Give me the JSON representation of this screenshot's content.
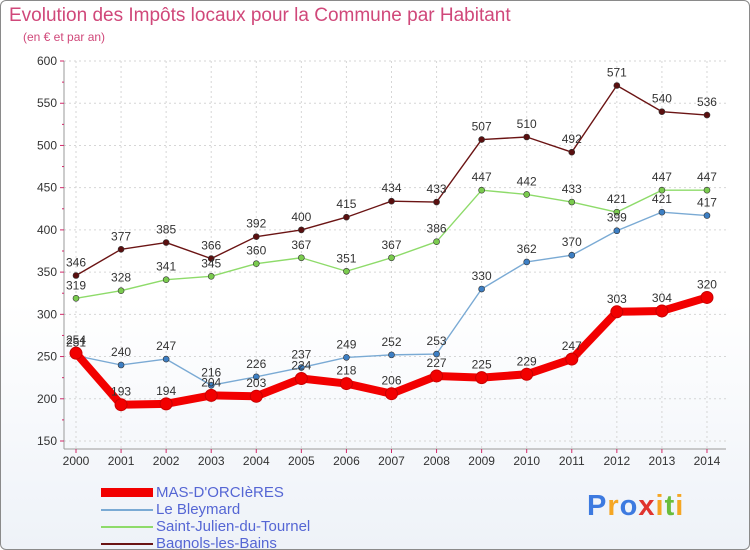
{
  "chart_data": {
    "type": "line",
    "title": "Evolution des Impôts locaux pour la Commune par Habitant",
    "subtitle": "(en € et par an)",
    "x": [
      "2000",
      "2001",
      "2002",
      "2003",
      "2004",
      "2005",
      "2006",
      "2007",
      "2008",
      "2009",
      "2010",
      "2011",
      "2012",
      "2013",
      "2014"
    ],
    "ylim": [
      150,
      600
    ],
    "yticks": [
      "150",
      "200",
      "250",
      "300",
      "350",
      "400",
      "450",
      "500",
      "550",
      "600"
    ],
    "grid": true,
    "series": [
      {
        "name": "Bagnols-les-Bains",
        "color": "#6b1414",
        "marker": "#5a0f0f",
        "values": [
          346,
          377,
          385,
          366,
          392,
          400,
          415,
          434,
          433,
          507,
          510,
          492,
          571,
          540,
          536
        ]
      },
      {
        "name": "Saint-Julien-du-Tournel",
        "color": "#8edb6a",
        "marker": "#7acb4e",
        "values": [
          319,
          328,
          341,
          345,
          360,
          367,
          351,
          367,
          386,
          447,
          442,
          433,
          421,
          447,
          447
        ]
      },
      {
        "name": "Le Bleymard",
        "color": "#7aaad4",
        "marker": "#3d7fc4",
        "values": [
          251,
          240,
          247,
          216,
          226,
          237,
          249,
          252,
          253,
          330,
          362,
          370,
          399,
          421,
          417
        ]
      },
      {
        "name": "MAS-D'ORCIèRES",
        "color": "#f20000",
        "marker": "#f20000",
        "values": [
          254,
          193,
          194,
          204,
          203,
          224,
          218,
          206,
          227,
          225,
          229,
          247,
          303,
          304,
          320
        ]
      }
    ],
    "legend": [
      "MAS-D'ORCIèRES",
      "Le Bleymard",
      "Saint-Julien-du-Tournel",
      "Bagnols-les-Bains"
    ],
    "legend_position": "bottom-left"
  },
  "brand": {
    "text": "Proxiti",
    "letters": [
      {
        "ch": "P",
        "color": "#3d7ae0"
      },
      {
        "ch": "r",
        "color": "#f5a623"
      },
      {
        "ch": "o",
        "color": "#3d7ae0"
      },
      {
        "ch": "x",
        "color": "#e0342f"
      },
      {
        "ch": "i",
        "color": "#f5a623"
      },
      {
        "ch": "t",
        "color": "#6abd3c"
      },
      {
        "ch": "i",
        "color": "#f5a623"
      }
    ]
  }
}
